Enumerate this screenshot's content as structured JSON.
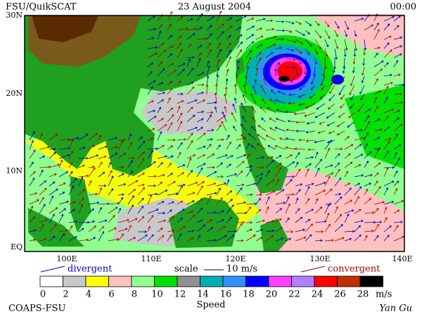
{
  "header": {
    "source": "FSU/QuikSCAT",
    "date": "23 August 2004",
    "time": "00:00"
  },
  "map": {
    "lat_labels": [
      "30N",
      "20N",
      "10N",
      "EQ"
    ],
    "lon_labels": [
      "100E",
      "110E",
      "120E",
      "130E",
      "140E"
    ]
  },
  "legend": {
    "divergent": "divergent",
    "scale": "scale",
    "scale_value": "10 m/s",
    "convergent": "convergent"
  },
  "colorbar": {
    "labels": [
      0,
      2,
      4,
      6,
      8,
      10,
      12,
      14,
      16,
      18,
      20,
      22,
      24,
      26,
      28
    ],
    "unit": "m/s",
    "title": "Speed",
    "colors": [
      "#ffffff",
      "#c8c8c8",
      "#ffff00",
      "#ffc0c0",
      "#90ff90",
      "#00e000",
      "#909090",
      "#00b0b0",
      "#3090ff",
      "#0000ff",
      "#ff40ff",
      "#b080ff",
      "#ff0000",
      "#c03000",
      "#000000"
    ]
  },
  "footer": {
    "left": "COAPS-FSU",
    "right": "Yan Gu"
  }
}
